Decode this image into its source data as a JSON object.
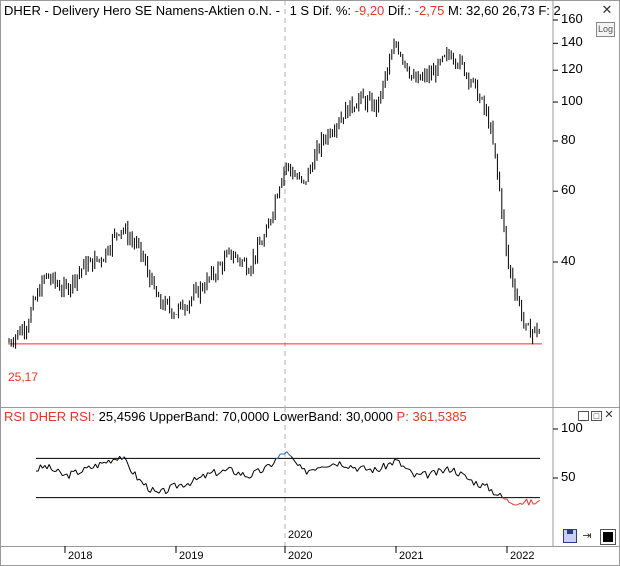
{
  "price_panel": {
    "title": "DHER - Delivery Hero SE Namens-Aktien o.N. -",
    "interval": "1 S",
    "diff_pct_label": "Dif. %:",
    "diff_pct_value": "-9,20",
    "diff_label": "Dif.:",
    "diff_value": "-2,75",
    "max_label": "M:",
    "max_value": "32,60",
    "min_value": "26,73",
    "f_label": "F: 2",
    "log_button": "Log",
    "support_label": "25,17",
    "y_ticks": [
      "160",
      "140",
      "120",
      "100",
      "80",
      "60",
      "40"
    ]
  },
  "rsi_panel": {
    "title": "RSI DHER RSI:",
    "rsi_value": "25,4596",
    "upper_label": "UpperBand:",
    "upper_value": "70,0000",
    "lower_label": "LowerBand:",
    "lower_value": "30,0000",
    "p_label": "P:",
    "p_value": "361,5385",
    "y_ticks": [
      "100",
      "50"
    ]
  },
  "x_axis": {
    "marker_year": "2020",
    "years": [
      "2018",
      "2019",
      "2020",
      "2021",
      "2022"
    ]
  },
  "colors": {
    "price_bars": "#000000",
    "support_line": "#e8342a",
    "rsi_line": "#000000",
    "rsi_overbought": "#1f5fbf",
    "rsi_oversold": "#e8342a",
    "header_red": "#e8342a"
  },
  "chart_data": [
    {
      "type": "line",
      "title": "DHER - Delivery Hero SE Namens-Aktien o.N.",
      "scale": "log",
      "ylim": [
        20,
        160
      ],
      "x": [
        "2017-07",
        "2017-09",
        "2017-11",
        "2018-01",
        "2018-03",
        "2018-05",
        "2018-07",
        "2018-09",
        "2018-11",
        "2019-01",
        "2019-03",
        "2019-05",
        "2019-07",
        "2019-09",
        "2019-11",
        "2020-01",
        "2020-03",
        "2020-05",
        "2020-07",
        "2020-09",
        "2020-11",
        "2021-01",
        "2021-03",
        "2021-05",
        "2021-07",
        "2021-09",
        "2021-11",
        "2022-01",
        "2022-03"
      ],
      "series": [
        {
          "values": [
            25,
            28,
            37,
            34,
            39,
            41,
            49,
            43,
            32,
            30,
            33,
            37,
            42,
            39,
            47,
            70,
            62,
            80,
            92,
            102,
            97,
            140,
            112,
            118,
            133,
            115,
            90,
            40,
            27
          ]
        }
      ],
      "annotations": [
        "25,17"
      ]
    },
    {
      "type": "line",
      "title": "RSI DHER",
      "ylim": [
        0,
        100
      ],
      "x": [
        "2017-07",
        "2017-09",
        "2017-11",
        "2018-01",
        "2018-03",
        "2018-05",
        "2018-07",
        "2018-09",
        "2018-11",
        "2019-01",
        "2019-03",
        "2019-05",
        "2019-07",
        "2019-09",
        "2019-11",
        "2020-01",
        "2020-03",
        "2020-05",
        "2020-07",
        "2020-09",
        "2020-11",
        "2021-01",
        "2021-03",
        "2021-05",
        "2021-07",
        "2021-09",
        "2021-11",
        "2022-01",
        "2022-03"
      ],
      "series": [
        {
          "values": [
            71,
            55,
            62,
            52,
            58,
            65,
            73,
            48,
            33,
            42,
            47,
            55,
            58,
            52,
            60,
            77,
            56,
            64,
            66,
            60,
            58,
            68,
            52,
            54,
            60,
            48,
            40,
            27,
            25
          ]
        }
      ],
      "bands": {
        "upper": 70,
        "lower": 30
      }
    }
  ]
}
